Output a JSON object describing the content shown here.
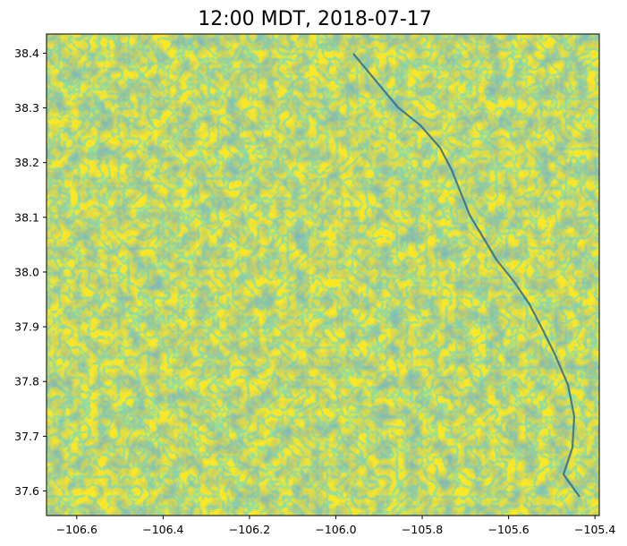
{
  "title": "12:00 MDT, 2018-07-17",
  "chart_data": {
    "type": "heatmap",
    "title": "12:00 MDT, 2018-07-17",
    "xlabel": "",
    "ylabel": "",
    "xlim": [
      -106.67,
      -105.39
    ],
    "ylim": [
      37.555,
      38.435
    ],
    "x_ticks": [
      -106.6,
      -106.4,
      -106.2,
      -106.0,
      -105.8,
      -105.6,
      -105.4
    ],
    "x_tick_labels": [
      "−106.6",
      "−106.4",
      "−106.2",
      "−106.0",
      "−105.8",
      "−105.6",
      "−105.4"
    ],
    "y_ticks": [
      37.6,
      37.7,
      37.8,
      37.9,
      38.0,
      38.1,
      38.2,
      38.3,
      38.4
    ],
    "y_tick_labels": [
      "37.6",
      "37.7",
      "37.8",
      "37.9",
      "38.0",
      "38.1",
      "38.2",
      "38.3",
      "38.4"
    ],
    "colormap": [
      "#fde725",
      "#b5de2b",
      "#35b779",
      "#1f9e89",
      "#26828e",
      "#31688e"
    ],
    "background_color": "#fde725",
    "grid": false,
    "legend": "none"
  }
}
